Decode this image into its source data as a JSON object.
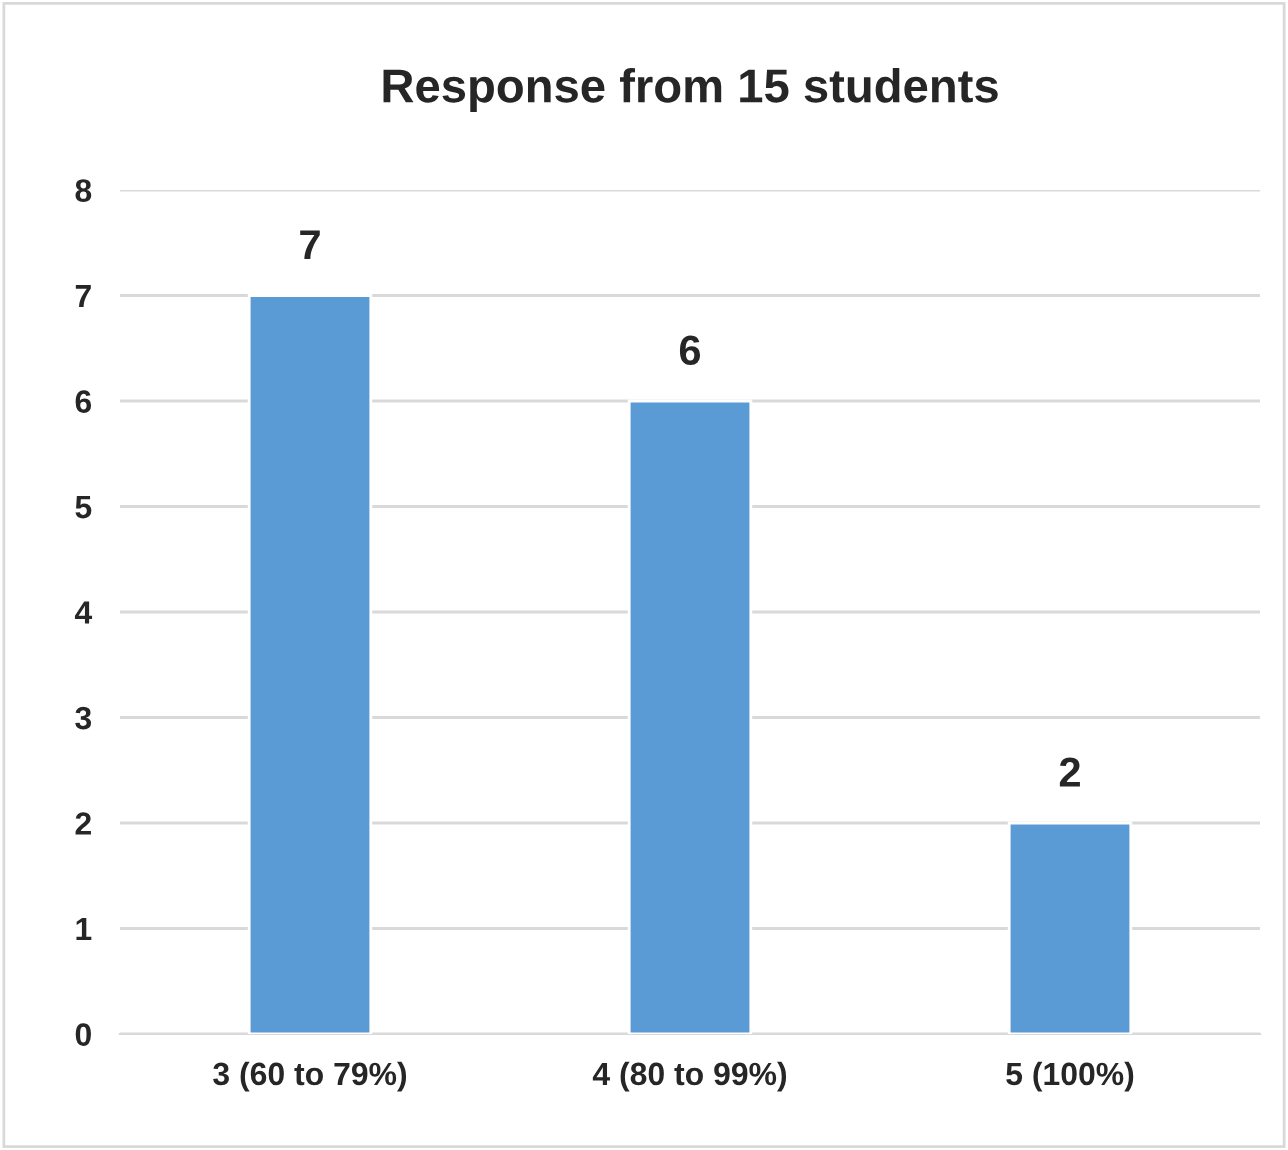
{
  "chart_data": {
    "type": "bar",
    "title": "Response from 15 students",
    "categories": [
      "3 (60 to 79%)",
      "4 (80 to 99%)",
      "5 (100%)"
    ],
    "values": [
      7,
      6,
      2
    ],
    "color": "#5b9bd5",
    "ylim": [
      0,
      8
    ],
    "yticks": [
      0,
      1,
      2,
      3,
      4,
      5,
      6,
      7,
      8
    ],
    "grid": "y",
    "data_labels": true
  }
}
